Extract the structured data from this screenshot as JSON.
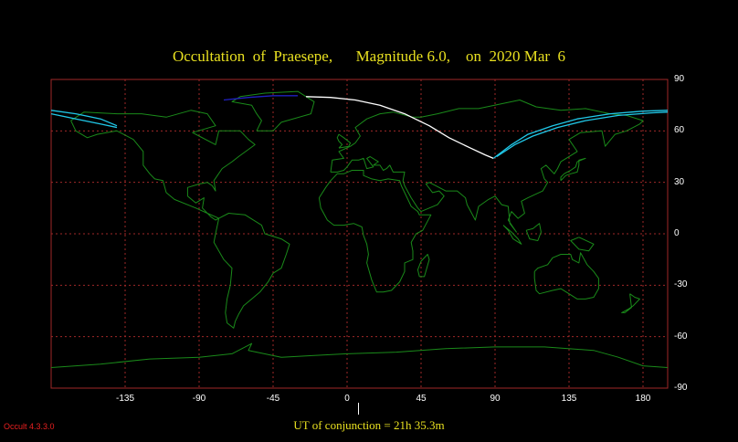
{
  "title": "Occultation  of  Praesepe,      Magnitude 6.0,    on  2020 Mar  6",
  "footer_text": "UT of conjunction = 21h 35.3m",
  "software_version": "Occult 4.3.3.0",
  "colors": {
    "background": "#000000",
    "grid": "#a02828",
    "coastline": "#1a8a1a",
    "title": "#e8e020",
    "path_daylight": "#ffffff",
    "path_night": "#20c8e8",
    "path_twilight": "#2020c0",
    "version": "#e82020"
  },
  "axes": {
    "longitude_labels": [
      "-135",
      "-90",
      "-45",
      "0",
      "45",
      "90",
      "135",
      "180"
    ],
    "latitude_labels": [
      "90",
      "60",
      "30",
      "0",
      "-30",
      "-60",
      "-90"
    ]
  },
  "map_data": {
    "projection": "equirectangular",
    "lon_range": [
      -180,
      195
    ],
    "lat_range": [
      -90,
      90
    ],
    "grid_lons": [
      -135,
      -90,
      -45,
      0,
      45,
      90,
      135,
      180
    ],
    "grid_lats": [
      60,
      30,
      0,
      -30,
      -60
    ],
    "occultation_limit_north": [
      [
        -180,
        72
      ],
      [
        -165,
        70
      ],
      [
        -150,
        67
      ],
      [
        -140,
        63
      ]
    ],
    "occultation_limit_south": [
      [
        -180,
        70
      ],
      [
        -165,
        67
      ],
      [
        -150,
        64
      ],
      [
        -140,
        62
      ]
    ],
    "path_twilight": [
      [
        -75,
        78
      ],
      [
        -60,
        79.5
      ],
      [
        -45,
        80.5
      ],
      [
        -30,
        80.5
      ]
    ],
    "path_daylight": [
      [
        -25,
        80
      ],
      [
        -10,
        79.5
      ],
      [
        5,
        78
      ],
      [
        20,
        75
      ],
      [
        35,
        70
      ],
      [
        50,
        63
      ],
      [
        62,
        56
      ],
      [
        75,
        50
      ],
      [
        84,
        46
      ],
      [
        89,
        44
      ]
    ],
    "path_night_north": [
      [
        89,
        44
      ],
      [
        100,
        52
      ],
      [
        110,
        58
      ],
      [
        125,
        63
      ],
      [
        140,
        67
      ],
      [
        160,
        70
      ],
      [
        180,
        71.5
      ],
      [
        195,
        72
      ]
    ],
    "path_night_south": [
      [
        91,
        45
      ],
      [
        102,
        52
      ],
      [
        113,
        57
      ],
      [
        128,
        62
      ],
      [
        145,
        66
      ],
      [
        165,
        69
      ],
      [
        185,
        70.5
      ],
      [
        195,
        71
      ]
    ]
  }
}
